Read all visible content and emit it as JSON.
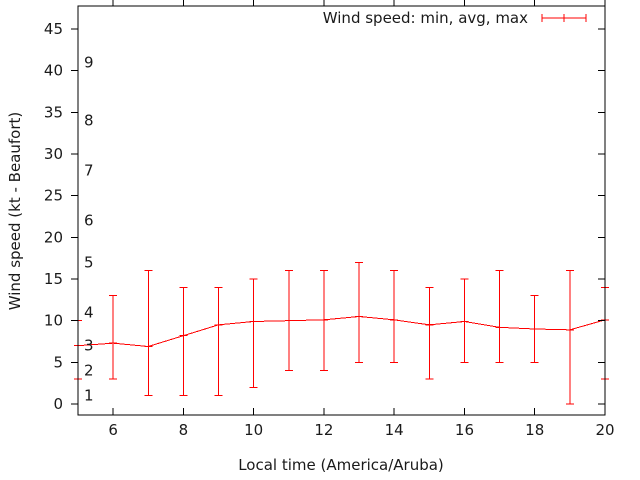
{
  "chart_data": {
    "type": "line",
    "subtype": "errorbar-line (min, avg, max)",
    "title": "",
    "xlabel": "Local time (America/Aruba)",
    "ylabel": "Wind speed (kt - Beaufort)",
    "legend_label": "Wind speed: min, avg, max",
    "legend_position": "top-right-inside",
    "grid": false,
    "x": [
      5,
      6,
      7,
      8,
      9,
      10,
      11,
      12,
      13,
      14,
      15,
      16,
      17,
      18,
      19,
      20
    ],
    "series": [
      {
        "name": "min",
        "values": [
          3,
          3,
          1,
          1,
          1,
          2,
          4,
          4,
          5,
          5,
          3,
          5,
          5,
          5,
          0,
          3
        ]
      },
      {
        "name": "avg",
        "values": [
          7.0,
          7.3,
          6.9,
          8.2,
          9.5,
          9.9,
          10.0,
          10.1,
          10.5,
          10.1,
          9.5,
          9.9,
          9.2,
          9.0,
          8.9,
          10.1
        ]
      },
      {
        "name": "max",
        "values": [
          10,
          13,
          16,
          14,
          14,
          15,
          16,
          16,
          17,
          16,
          14,
          15,
          16,
          13,
          16,
          14
        ]
      }
    ],
    "x_axis": {
      "ticks": [
        6,
        8,
        10,
        12,
        14,
        16,
        18,
        20
      ],
      "range": [
        5,
        20
      ]
    },
    "y_axis": {
      "ticks": [
        0,
        5,
        10,
        15,
        20,
        25,
        30,
        35,
        40,
        45
      ],
      "range": [
        -1.3,
        47.8
      ],
      "unit": "kt"
    },
    "beaufort_scale": [
      {
        "label": "1",
        "kt": 1
      },
      {
        "label": "2",
        "kt": 4
      },
      {
        "label": "3",
        "kt": 7
      },
      {
        "label": "4",
        "kt": 11
      },
      {
        "label": "5",
        "kt": 17
      },
      {
        "label": "6",
        "kt": 22
      },
      {
        "label": "7",
        "kt": 28
      },
      {
        "label": "8",
        "kt": 34
      },
      {
        "label": "9",
        "kt": 41
      }
    ],
    "colors": {
      "series": "#ff0000",
      "axis": "#000000",
      "text": "#1a1a1a",
      "background": "#ffffff"
    }
  }
}
